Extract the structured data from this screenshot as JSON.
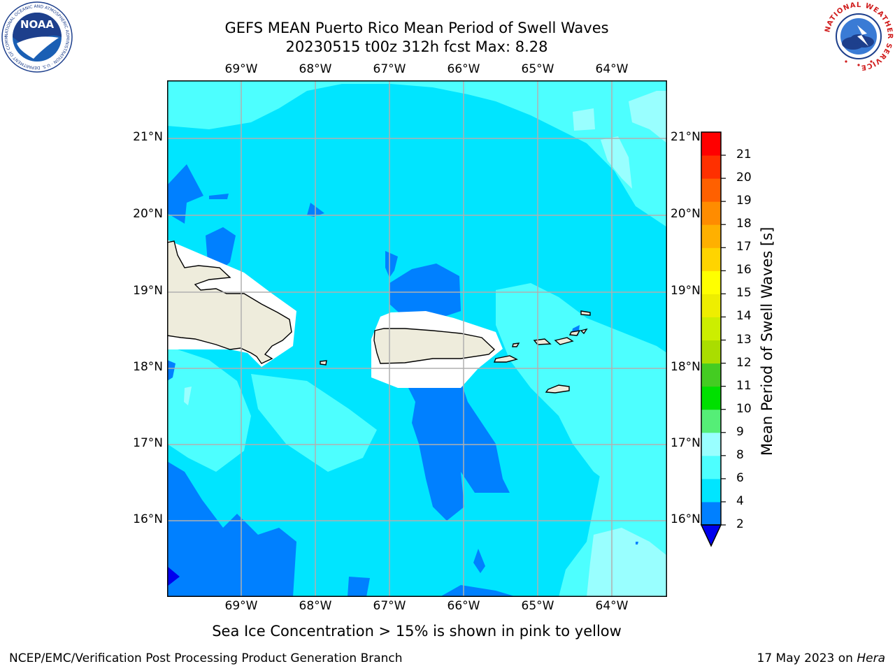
{
  "header": {
    "title_line1": "GEFS MEAN Puerto Rico Mean Period of Swell Waves",
    "title_line2": "20230515 t00z 312h fcst   Max: 8.28"
  },
  "logos": {
    "noaa_label": "NOAA",
    "noaa_ring_text": "NATIONAL OCEANIC AND ATMOSPHERIC ADMINISTRATION · U.S. DEPARTMENT OF COMMERCE",
    "nws_ring_text": "NATIONAL WEATHER SERVICE"
  },
  "map": {
    "lon_labels": [
      "69°W",
      "68°W",
      "67°W",
      "66°W",
      "65°W",
      "64°W"
    ],
    "lat_labels": [
      "21°N",
      "20°N",
      "19°N",
      "18°N",
      "17°N",
      "16°N"
    ]
  },
  "colorbar": {
    "label": "Mean Period of Swell Waves [s]",
    "ticks": [
      "2",
      "4",
      "6",
      "8",
      "9",
      "10",
      "11",
      "12",
      "13",
      "14",
      "15",
      "16",
      "17",
      "18",
      "19",
      "20",
      "21"
    ],
    "colors": [
      "#0080ff",
      "#00e5ff",
      "#4dffff",
      "#99ffff",
      "#55ee77",
      "#00e000",
      "#44cc22",
      "#aadd00",
      "#ccee00",
      "#eeee00",
      "#ffff00",
      "#ffd400",
      "#ffb000",
      "#ff8c00",
      "#ff6000",
      "#ff3000",
      "#ff0000"
    ],
    "extend_color": "#0000ee"
  },
  "colors": {
    "land": "#eeecdc",
    "period_4_6": "#00e5ff",
    "period_6_8": "#4dffff",
    "period_8_9": "#99ffff",
    "period_2_4": "#0080ff",
    "period_below_2": "#0000ee"
  },
  "notes": {
    "sea_ice": "Sea Ice Concentration > 15% is shown in pink to yellow"
  },
  "footer": {
    "left": "NCEP/EMC/Verification Post Processing Product Generation Branch",
    "right_date": "17 May 2023 on ",
    "right_machine": "Hera"
  }
}
